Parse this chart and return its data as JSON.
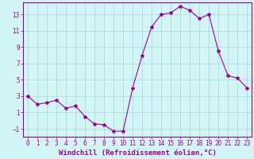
{
  "x": [
    0,
    1,
    2,
    3,
    4,
    5,
    6,
    7,
    8,
    9,
    10,
    11,
    12,
    13,
    14,
    15,
    16,
    17,
    18,
    19,
    20,
    21,
    22,
    23
  ],
  "y": [
    3.0,
    2.0,
    2.2,
    2.5,
    1.5,
    1.8,
    0.5,
    -0.4,
    -0.5,
    -1.3,
    -1.3,
    4.0,
    8.0,
    11.5,
    13.0,
    13.2,
    14.0,
    13.5,
    12.5,
    13.0,
    8.5,
    5.5,
    5.2,
    4.0
  ],
  "line_color": "#990099",
  "marker": "*",
  "marker_size": 3,
  "bg_color": "#d4f5f5",
  "grid_color": "#aadddd",
  "xlabel": "Windchill (Refroidissement éolien,°C)",
  "xlabel_fontsize": 6.5,
  "yticks": [
    -1,
    1,
    3,
    5,
    7,
    9,
    11,
    13
  ],
  "xticks": [
    0,
    1,
    2,
    3,
    4,
    5,
    6,
    7,
    8,
    9,
    10,
    11,
    12,
    13,
    14,
    15,
    16,
    17,
    18,
    19,
    20,
    21,
    22,
    23
  ],
  "ylim": [
    -2,
    14.5
  ],
  "xlim": [
    -0.5,
    23.5
  ],
  "tick_fontsize": 5.5,
  "tick_color": "#990099",
  "spine_color": "#990099"
}
